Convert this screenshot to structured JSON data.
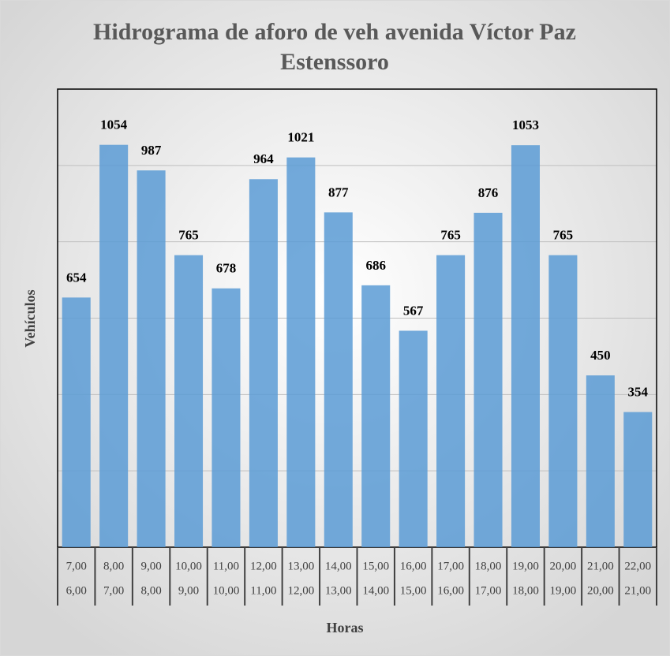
{
  "chart_data": {
    "type": "bar",
    "title": "Hidrograma de aforo de veh avenida Víctor Paz Estenssoro",
    "y_label": "Vehículos",
    "x_label": "Horas",
    "categories": [
      [
        "7,00",
        "6,00"
      ],
      [
        "8,00",
        "7,00"
      ],
      [
        "9,00",
        "8,00"
      ],
      [
        "10,00",
        "9,00"
      ],
      [
        "11,00",
        "10,00"
      ],
      [
        "12,00",
        "11,00"
      ],
      [
        "13,00",
        "12,00"
      ],
      [
        "14,00",
        "13,00"
      ],
      [
        "15,00",
        "14,00"
      ],
      [
        "16,00",
        "15,00"
      ],
      [
        "17,00",
        "16,00"
      ],
      [
        "18,00",
        "17,00"
      ],
      [
        "19,00",
        "18,00"
      ],
      [
        "20,00",
        "19,00"
      ],
      [
        "21,00",
        "20,00"
      ],
      [
        "22,00",
        "21,00"
      ]
    ],
    "values": [
      654,
      1054,
      987,
      765,
      678,
      964,
      1021,
      877,
      686,
      567,
      765,
      876,
      1053,
      765,
      450,
      354
    ],
    "color": "#5b9bd5",
    "ylim": [
      0,
      1200
    ],
    "yticks": [
      0,
      200,
      400,
      600,
      800,
      1000,
      1200
    ],
    "grid": true
  }
}
